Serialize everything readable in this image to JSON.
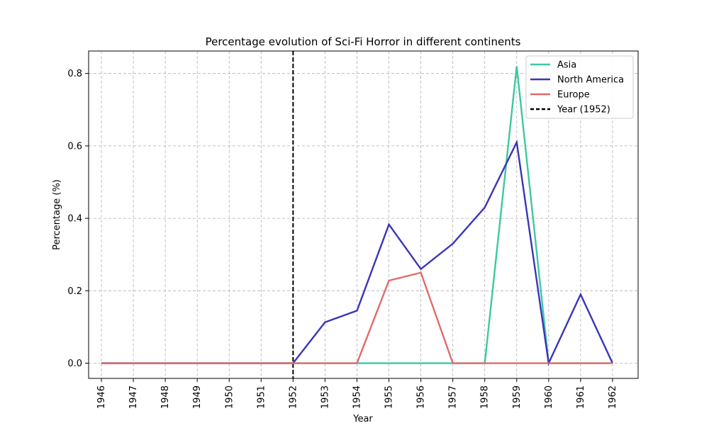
{
  "chart_data": {
    "type": "line",
    "title": "Percentage evolution of Sci-Fi Horror in different continents",
    "xlabel": "Year",
    "ylabel": "Percentage (%)",
    "x": [
      1946,
      1947,
      1948,
      1949,
      1950,
      1951,
      1952,
      1953,
      1954,
      1955,
      1956,
      1957,
      1958,
      1959,
      1960,
      1961,
      1962
    ],
    "xlim": [
      1945.6,
      1962.8
    ],
    "ylim": [
      -0.042,
      0.862
    ],
    "yticks": [
      0.0,
      0.2,
      0.4,
      0.6,
      0.8
    ],
    "ytick_labels": [
      "0.0",
      "0.2",
      "0.4",
      "0.6",
      "0.8"
    ],
    "grid": true,
    "legend_position": "top-right",
    "series": [
      {
        "name": "Asia",
        "color": "#3cc8a0",
        "values": [
          0,
          0,
          0,
          0,
          0,
          0,
          0,
          0,
          0,
          0,
          0,
          0,
          0,
          0.82,
          0,
          0,
          0
        ]
      },
      {
        "name": "North America",
        "color": "#3a35b8",
        "values": [
          0,
          0,
          0,
          0,
          0,
          0,
          0,
          0.113,
          0.145,
          0.383,
          0.26,
          0.33,
          0.43,
          0.61,
          0,
          0.19,
          0
        ]
      },
      {
        "name": "Europe",
        "color": "#e06b6b",
        "values": [
          0,
          0,
          0,
          0,
          0,
          0,
          0,
          0,
          0,
          0.228,
          0.25,
          0,
          0,
          0,
          0,
          0,
          0
        ]
      }
    ],
    "vline": {
      "x": 1952,
      "label": "Year (1952)",
      "color": "#000000"
    }
  }
}
